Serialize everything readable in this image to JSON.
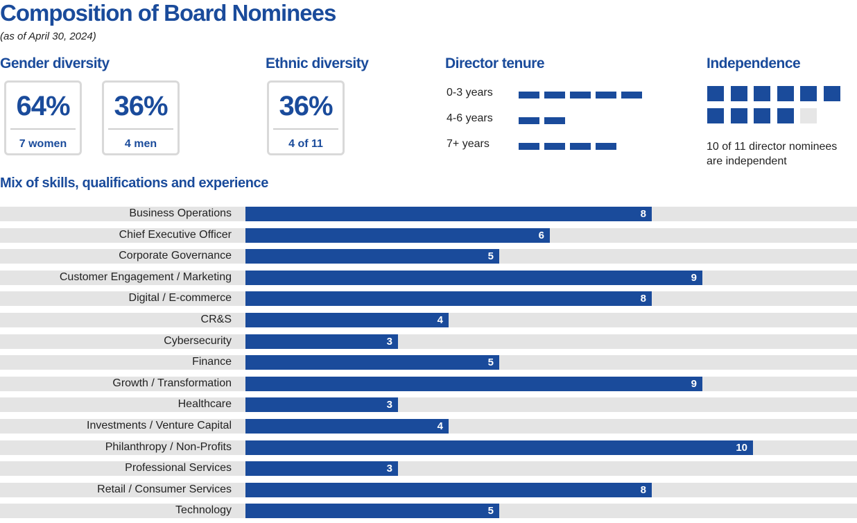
{
  "title": "Composition of Board Nominees",
  "subtitle": "(as of April 30, 2024)",
  "gender": {
    "heading": "Gender diversity",
    "women": {
      "pct": "64%",
      "caption": "7 women"
    },
    "men": {
      "pct": "36%",
      "caption": "4 men"
    }
  },
  "ethnic": {
    "heading": "Ethnic diversity",
    "pct": "36%",
    "caption": "4 of 11"
  },
  "tenure": {
    "heading": "Director tenure",
    "rows": [
      {
        "label": "0-3 years",
        "count": 5
      },
      {
        "label": "4-6 years",
        "count": 2
      },
      {
        "label": "7+ years",
        "count": 4
      }
    ]
  },
  "independence": {
    "heading": "Independence",
    "independent": 10,
    "total": 11,
    "text": "10 of 11 director nominees are independent"
  },
  "colors": {
    "accent": "#1a4b9b",
    "track": "#e4e4e4",
    "inactive": "#e6e6e6"
  },
  "chart_data": {
    "type": "bar",
    "orientation": "horizontal",
    "title": "Mix of skills, qualifications and experience",
    "categories": [
      "Business Operations",
      "Chief Executive Officer",
      "Corporate Governance",
      "Customer Engagement / Marketing",
      "Digital / E-commerce",
      "CR&S",
      "Cybersecurity",
      "Finance",
      "Growth / Transformation",
      "Healthcare",
      "Investments / Venture Capital",
      "Philanthropy / Non-Profits",
      "Professional Services",
      "Retail / Consumer Services",
      "Technology"
    ],
    "values": [
      8,
      6,
      5,
      9,
      8,
      4,
      3,
      5,
      9,
      3,
      4,
      10,
      3,
      8,
      5
    ],
    "xlim": [
      0,
      12
    ],
    "data_labels": true
  }
}
